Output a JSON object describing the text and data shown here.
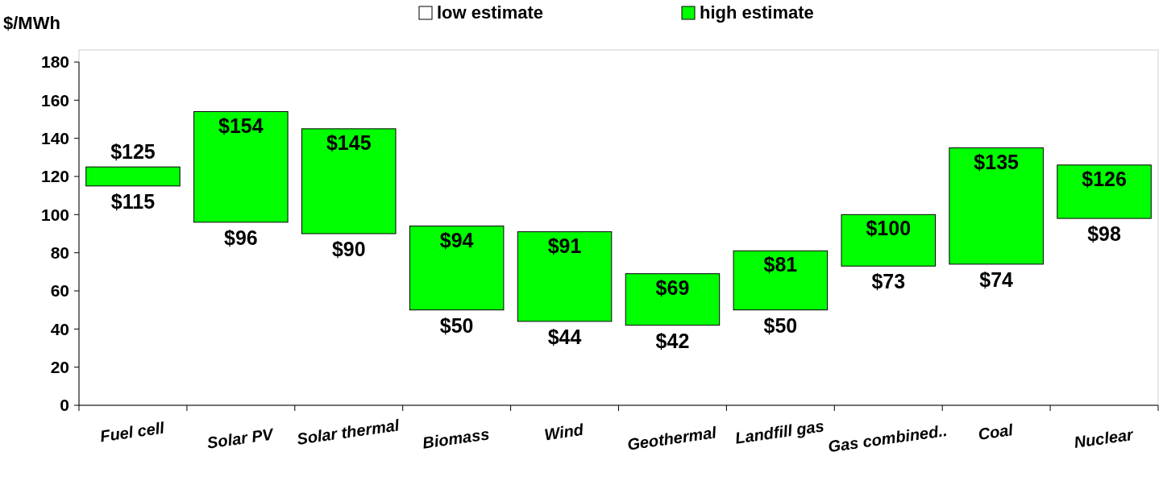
{
  "chart_data": {
    "type": "bar",
    "ylabel": "$/MWh",
    "categories": [
      "Fuel cell",
      "Solar PV",
      "Solar thermal",
      "Biomass",
      "Wind",
      "Geothermal",
      "Landfill gas",
      "Gas combined..",
      "Coal",
      "Nuclear"
    ],
    "series": [
      {
        "name": "high estimate",
        "color": "#00ff00",
        "base": [
          115,
          96,
          90,
          50,
          44,
          42,
          50,
          73,
          74,
          98
        ],
        "values": [
          10,
          58,
          55,
          44,
          47,
          27,
          31,
          27,
          61,
          28
        ]
      }
    ],
    "annotations": [
      "low estimate",
      {
        "text": "$115",
        "x": "Fuel cell",
        "y": 115
      },
      {
        "text": "$125",
        "x": "Fuel cell",
        "y": 125
      },
      {
        "text": "$96",
        "x": "Solar PV",
        "y": 96
      },
      {
        "text": "$154",
        "x": "Solar PV",
        "y": 154
      },
      {
        "text": "$90",
        "x": "Solar thermal",
        "y": 90
      },
      {
        "text": "$145",
        "x": "Solar thermal",
        "y": 145
      },
      {
        "text": "$50",
        "x": "Biomass",
        "y": 50
      },
      {
        "text": "$94",
        "x": "Biomass",
        "y": 94
      },
      {
        "text": "$44",
        "x": "Wind",
        "y": 44
      },
      {
        "text": "$91",
        "x": "Wind",
        "y": 91
      },
      {
        "text": "$42",
        "x": "Geothermal",
        "y": 42
      },
      {
        "text": "$69",
        "x": "Geothermal",
        "y": 69
      },
      {
        "text": "$50",
        "x": "Landfill gas",
        "y": 50
      },
      {
        "text": "$81",
        "x": "Landfill gas",
        "y": 81
      },
      {
        "text": "$73",
        "x": "Gas combined..",
        "y": 73
      },
      {
        "text": "$100",
        "x": "Gas combined..",
        "y": 100
      },
      {
        "text": "$74",
        "x": "Coal",
        "y": 74
      },
      {
        "text": "$135",
        "x": "Coal",
        "y": 135
      },
      {
        "text": "$98",
        "x": "Nuclear",
        "y": 98
      },
      {
        "text": "$126",
        "x": "Nuclear",
        "y": 126
      }
    ],
    "ylim": [
      0,
      180
    ],
    "yticks": [
      0,
      20,
      40,
      60,
      80,
      100,
      120,
      140,
      160,
      180
    ],
    "legend": "top"
  }
}
